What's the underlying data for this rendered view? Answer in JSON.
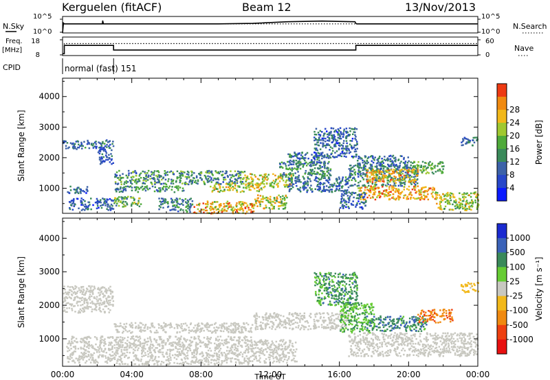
{
  "header": {
    "station": "Kerguelen (fitACF)",
    "beam": "Beam 12",
    "date": "13/Nov/2013"
  },
  "chart_data": [
    {
      "type": "line",
      "title": "",
      "ylabel_left": "N.Sky",
      "ylabel_right": "N.Search",
      "left_ticks": [
        "10^5",
        "10^0"
      ],
      "right_ticks": [
        "10^5",
        "10^0"
      ],
      "x_range_hours": [
        0,
        24
      ],
      "series": [
        {
          "name": "N.Sky",
          "style": "solid",
          "x": [
            0,
            0.05,
            0.1,
            2.3,
            2.32,
            2.36,
            9,
            11,
            13,
            15,
            16.9,
            16.95,
            17,
            24
          ],
          "y": [
            0,
            0.6,
            0.55,
            0.55,
            0.75,
            0.55,
            0.55,
            0.58,
            0.68,
            0.72,
            0.68,
            0.58,
            0.55,
            0.55
          ]
        },
        {
          "name": "N.Search",
          "style": "dotted",
          "x": [
            0,
            24
          ],
          "y": [
            0.55,
            0.55
          ]
        }
      ]
    },
    {
      "type": "line",
      "ylabel_left": [
        "Freq.",
        "[MHz]"
      ],
      "ylabel_right": "Nave",
      "left_ticks": [
        "18",
        "8"
      ],
      "right_ticks": [
        "60",
        "0"
      ],
      "x_range_hours": [
        0,
        24
      ],
      "series": [
        {
          "name": "Freq.",
          "style": "solid",
          "x": [
            0,
            0.1,
            0.1,
            2.95,
            2.95,
            16.95,
            16.95,
            24
          ],
          "y": [
            0.1,
            0.1,
            0.55,
            0.55,
            0.3,
            0.3,
            0.55,
            0.55
          ]
        },
        {
          "name": "Nave",
          "style": "dotted",
          "x": [
            0,
            0.1,
            0.1,
            2.95,
            2.95,
            16.95,
            16.95,
            24
          ],
          "y": [
            0.1,
            0.1,
            0.65,
            0.65,
            0.65,
            0.65,
            0.65,
            0.65
          ]
        }
      ]
    },
    {
      "type": "heatmap",
      "ylabel": "Slant Range [km]",
      "ylim": [
        180,
        4600
      ],
      "y_ticks": [
        1000,
        2000,
        3000,
        4000
      ],
      "parameter": "Power",
      "colorbar_label": "Power [dB]",
      "colorbar_ticks": [
        "4",
        "8",
        "12",
        "16",
        "20",
        "24",
        "28"
      ],
      "colorbar_colors": [
        "#0a1aff",
        "#2747c9",
        "#3c62a8",
        "#3a8a5a",
        "#4faa3a",
        "#a0c830",
        "#f2b81a",
        "#f08a10",
        "#ee3a12"
      ],
      "scatter_bands": [
        {
          "x0": 0.0,
          "x1": 2.9,
          "r0": 2300,
          "r1": 2600,
          "lvl": [
            0.15,
            0.45
          ]
        },
        {
          "x0": 2.0,
          "x1": 2.9,
          "r0": 1800,
          "r1": 2300,
          "lvl": [
            0.1,
            0.35
          ]
        },
        {
          "x0": 0.2,
          "x1": 1.4,
          "r0": 850,
          "r1": 1100,
          "lvl": [
            0.1,
            0.4
          ]
        },
        {
          "x0": 0.3,
          "x1": 2.9,
          "r0": 300,
          "r1": 700,
          "lvl": [
            0.1,
            0.4
          ]
        },
        {
          "x0": 2.95,
          "x1": 10.5,
          "r0": 1150,
          "r1": 1600,
          "lvl": [
            0.2,
            0.6
          ]
        },
        {
          "x0": 2.95,
          "x1": 7.0,
          "r0": 900,
          "r1": 1100,
          "lvl": [
            0.2,
            0.55
          ]
        },
        {
          "x0": 2.95,
          "x1": 4.5,
          "r0": 400,
          "r1": 750,
          "lvl": [
            0.3,
            0.7
          ]
        },
        {
          "x0": 5.5,
          "x1": 7.5,
          "r0": 250,
          "r1": 700,
          "lvl": [
            0.2,
            0.55
          ]
        },
        {
          "x0": 7.5,
          "x1": 11.0,
          "r0": 200,
          "r1": 600,
          "lvl": [
            0.5,
            0.95
          ]
        },
        {
          "x0": 8.5,
          "x1": 11.5,
          "r0": 900,
          "r1": 1200,
          "lvl": [
            0.4,
            0.8
          ]
        },
        {
          "x0": 10.5,
          "x1": 13.2,
          "r0": 1050,
          "r1": 1500,
          "lvl": [
            0.5,
            0.85
          ]
        },
        {
          "x0": 11.0,
          "x1": 13.0,
          "r0": 350,
          "r1": 800,
          "lvl": [
            0.4,
            0.85
          ]
        },
        {
          "x0": 12.5,
          "x1": 15.5,
          "r0": 1400,
          "r1": 1900,
          "lvl": [
            0.2,
            0.55
          ]
        },
        {
          "x0": 13.0,
          "x1": 15.0,
          "r0": 1800,
          "r1": 2200,
          "lvl": [
            0.15,
            0.5
          ]
        },
        {
          "x0": 14.5,
          "x1": 17.0,
          "r0": 2000,
          "r1": 3000,
          "lvl": [
            0.1,
            0.45
          ]
        },
        {
          "x0": 13.0,
          "x1": 16.5,
          "r0": 900,
          "r1": 1400,
          "lvl": [
            0.15,
            0.45
          ]
        },
        {
          "x0": 16.5,
          "x1": 20.5,
          "r0": 1100,
          "r1": 1800,
          "lvl": [
            0.2,
            0.5
          ]
        },
        {
          "x0": 17.5,
          "x1": 20.5,
          "r0": 1200,
          "r1": 1650,
          "lvl": [
            0.6,
            0.95
          ]
        },
        {
          "x0": 17.0,
          "x1": 21.5,
          "r0": 650,
          "r1": 1100,
          "lvl": [
            0.6,
            0.95
          ]
        },
        {
          "x0": 17.0,
          "x1": 20.0,
          "r0": 1650,
          "r1": 2100,
          "lvl": [
            0.15,
            0.45
          ]
        },
        {
          "x0": 20.0,
          "x1": 22.0,
          "r0": 1500,
          "r1": 1900,
          "lvl": [
            0.35,
            0.65
          ]
        },
        {
          "x0": 21.5,
          "x1": 24.0,
          "r0": 300,
          "r1": 900,
          "lvl": [
            0.4,
            0.8
          ]
        },
        {
          "x0": 16.0,
          "x1": 17.5,
          "r0": 350,
          "r1": 900,
          "lvl": [
            0.1,
            0.4
          ]
        },
        {
          "x0": 23.0,
          "x1": 24.0,
          "r0": 2400,
          "r1": 2700,
          "lvl": [
            0.15,
            0.4
          ]
        }
      ]
    },
    {
      "type": "heatmap",
      "ylabel": "Slant Range [km]",
      "xlabel": "Time UT",
      "x_ticks": [
        "00:00",
        "04:00",
        "08:00",
        "12:00",
        "16:00",
        "20:00",
        "00:00"
      ],
      "ylim": [
        180,
        4600
      ],
      "y_ticks": [
        1000,
        2000,
        3000,
        4000
      ],
      "parameter": "Velocity",
      "colorbar_label": "Velocity [m s⁻¹]",
      "colorbar_ticks": [
        "1000",
        "500",
        "100",
        "25",
        "-25",
        "-100",
        "-500",
        "-1000"
      ],
      "colorbar_colors": [
        "#1a2ad0",
        "#3a62b8",
        "#3a8a5a",
        "#66cc33",
        "#c8c8c0",
        "#f2b81a",
        "#f08a10",
        "#ee4010",
        "#e81010"
      ],
      "scatter_bands": [
        {
          "x0": 0.0,
          "x1": 2.9,
          "r0": 1800,
          "r1": 2600,
          "lvl": [
            0.45,
            0.55
          ]
        },
        {
          "x0": 0.2,
          "x1": 2.9,
          "r0": 300,
          "r1": 1100,
          "lvl": [
            0.45,
            0.55
          ]
        },
        {
          "x0": 2.95,
          "x1": 11.0,
          "r0": 1200,
          "r1": 1500,
          "lvl": [
            0.45,
            0.55
          ]
        },
        {
          "x0": 2.95,
          "x1": 11.0,
          "r0": 250,
          "r1": 1100,
          "lvl": [
            0.45,
            0.55
          ]
        },
        {
          "x0": 11.0,
          "x1": 16.5,
          "r0": 1300,
          "r1": 1800,
          "lvl": [
            0.45,
            0.55
          ]
        },
        {
          "x0": 11.0,
          "x1": 13.5,
          "r0": 300,
          "r1": 1000,
          "lvl": [
            0.45,
            0.55
          ]
        },
        {
          "x0": 14.5,
          "x1": 17.0,
          "r0": 2000,
          "r1": 3000,
          "lvl": [
            0.2,
            0.4
          ]
        },
        {
          "x0": 16.0,
          "x1": 18.0,
          "r0": 1200,
          "r1": 2100,
          "lvl": [
            0.3,
            0.42
          ]
        },
        {
          "x0": 17.5,
          "x1": 21.0,
          "r0": 1250,
          "r1": 1700,
          "lvl": [
            0.15,
            0.35
          ]
        },
        {
          "x0": 20.5,
          "x1": 22.5,
          "r0": 1500,
          "r1": 1900,
          "lvl": [
            0.7,
            0.8
          ]
        },
        {
          "x0": 16.5,
          "x1": 24.0,
          "r0": 500,
          "r1": 1200,
          "lvl": [
            0.45,
            0.55
          ]
        },
        {
          "x0": 23.0,
          "x1": 24.0,
          "r0": 2400,
          "r1": 2700,
          "lvl": [
            0.55,
            0.65
          ]
        }
      ]
    }
  ],
  "labels": {
    "cpid": "CPID",
    "mode": "normal (fast) 151"
  }
}
